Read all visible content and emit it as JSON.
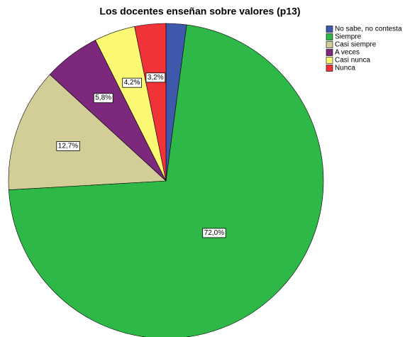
{
  "chart_data": {
    "type": "pie",
    "title": "Los docentes enseñan sobre valores (p13)",
    "categories": [
      "No sabe, no contesta",
      "Siempre",
      "Casi siempre",
      "A veces",
      "Casi nunca",
      "Nunca"
    ],
    "values": [
      2.1,
      72.0,
      12.7,
      5.8,
      4.2,
      3.2
    ],
    "value_labels": [
      null,
      "72,0%",
      "12,7%",
      "5,8%",
      "4,2%",
      "3,2%"
    ],
    "colors": [
      "#3e58ac",
      "#2eb848",
      "#d3ce97",
      "#7b287d",
      "#fbf873",
      "#ef3338"
    ],
    "legend": "top-right"
  }
}
